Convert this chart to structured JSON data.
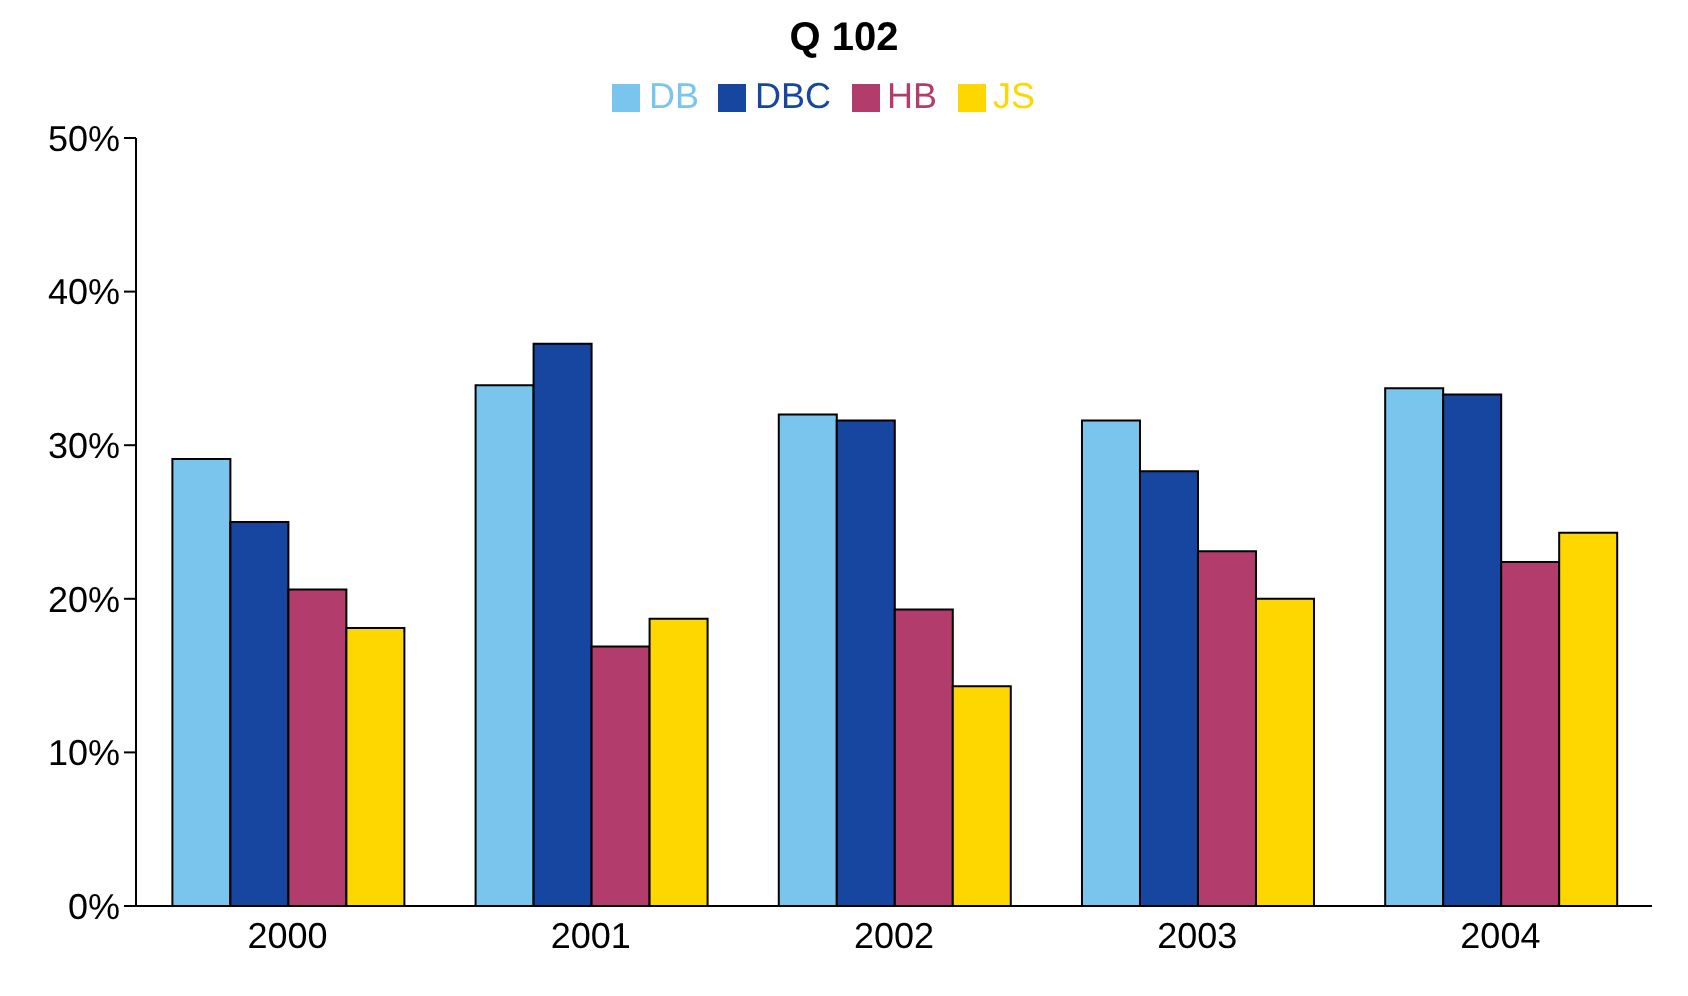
{
  "chart_data": {
    "type": "bar",
    "title": "Q 102",
    "categories": [
      "2000",
      "2001",
      "2002",
      "2003",
      "2004"
    ],
    "series": [
      {
        "name": "DB",
        "color": "#7ac5ee",
        "values": [
          29.1,
          33.9,
          32.0,
          31.6,
          33.7
        ]
      },
      {
        "name": "DBC",
        "color": "#1646a0",
        "values": [
          25.0,
          36.6,
          31.6,
          28.3,
          33.3
        ]
      },
      {
        "name": "HB",
        "color": "#b23c6c",
        "values": [
          20.6,
          16.9,
          19.3,
          23.1,
          22.4
        ]
      },
      {
        "name": "JS",
        "color": "#ffd700",
        "values": [
          18.1,
          18.7,
          14.3,
          20.0,
          24.3
        ]
      }
    ],
    "ylim": [
      0,
      50
    ],
    "yticks": [
      {
        "value": 0,
        "label": "0%"
      },
      {
        "value": 10,
        "label": "10%"
      },
      {
        "value": 20,
        "label": "20%"
      },
      {
        "value": 30,
        "label": "30%"
      },
      {
        "value": 40,
        "label": "40%"
      },
      {
        "value": 50,
        "label": "50%"
      }
    ],
    "grid": false,
    "legend": "top"
  }
}
